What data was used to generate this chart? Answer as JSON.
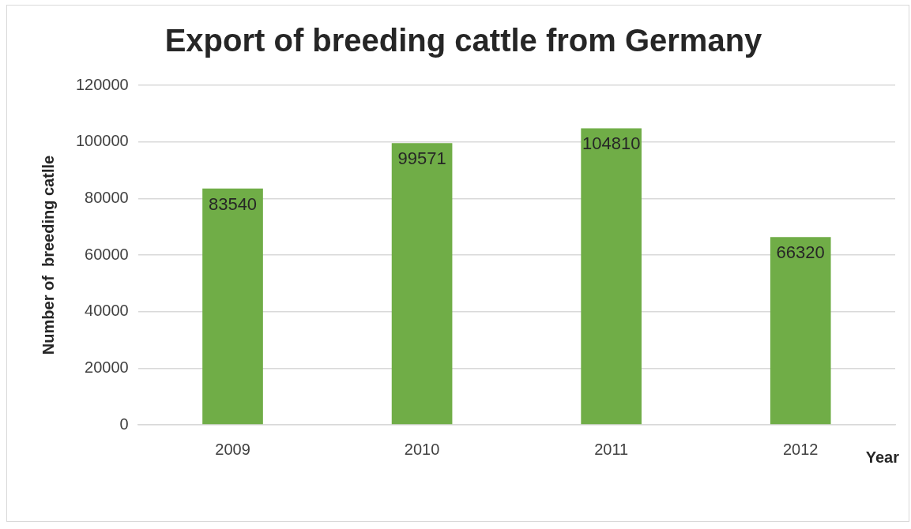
{
  "chart_data": {
    "type": "bar",
    "title": "Export of breeding cattle from Germany",
    "xlabel": "Year",
    "ylabel": "Number of  breeding catlle",
    "categories": [
      "2009",
      "2010",
      "2011",
      "2012"
    ],
    "values": [
      83540,
      99571,
      104810,
      66320
    ],
    "color": "#70ad47",
    "ylim": [
      0,
      120000
    ],
    "yticks": [
      0,
      20000,
      40000,
      60000,
      80000,
      100000,
      120000
    ],
    "grid": "y",
    "data_labels": true
  }
}
